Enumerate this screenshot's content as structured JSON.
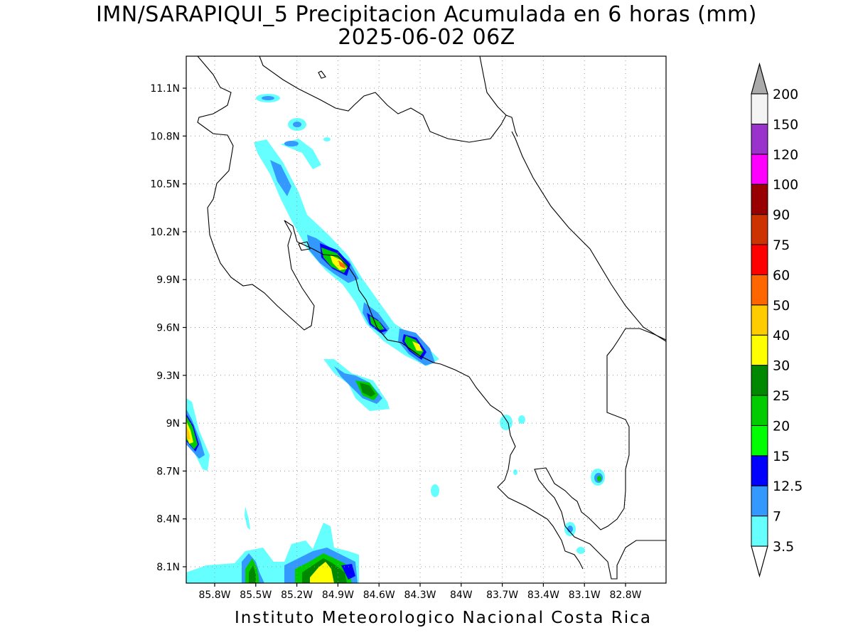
{
  "title": "IMN/SARAPIQUI_5 Precipitacion Acumulada en 6 horas (mm)",
  "subtitle": "2025-06-02 06Z",
  "credit": "Instituto Meteorologico Nacional Costa Rica",
  "map": {
    "lon_range": [
      -86.0,
      -83.0
    ],
    "lat_range": [
      8.0,
      11.2
    ],
    "lat_ticks": [
      {
        "value": 11.1,
        "label": "11.1N"
      },
      {
        "value": 10.8,
        "label": "10.8N"
      },
      {
        "value": 10.5,
        "label": "10.5N"
      },
      {
        "value": 10.2,
        "label": "10.2N"
      },
      {
        "value": 9.9,
        "label": "9.9N"
      },
      {
        "value": 9.6,
        "label": "9.6N"
      },
      {
        "value": 9.3,
        "label": "9.3N"
      },
      {
        "value": 9.0,
        "label": "9N"
      },
      {
        "value": 8.7,
        "label": "8.7N"
      },
      {
        "value": 8.4,
        "label": "8.4N"
      },
      {
        "value": 8.1,
        "label": "8.1N"
      }
    ],
    "lon_ticks": [
      {
        "value": -85.8,
        "label": "85.8W"
      },
      {
        "value": -85.5,
        "label": "85.5W"
      },
      {
        "value": -85.2,
        "label": "85.2W"
      },
      {
        "value": -84.9,
        "label": "84.9W"
      },
      {
        "value": -84.6,
        "label": "84.6W"
      },
      {
        "value": -84.3,
        "label": "84.3W"
      },
      {
        "value": -84.0,
        "label": "84W"
      },
      {
        "value": -83.7,
        "label": "83.7W"
      },
      {
        "value": -83.4,
        "label": "83.4W"
      },
      {
        "value": -83.1,
        "label": "83.1W"
      },
      {
        "value": -82.8,
        "label": "82.8W"
      }
    ],
    "gridlines": true
  },
  "colorbar": {
    "levels": [
      "3.5",
      "7",
      "12.5",
      "15",
      "20",
      "25",
      "30",
      "40",
      "50",
      "60",
      "75",
      "90",
      "100",
      "120",
      "150",
      "200"
    ],
    "colors": [
      "#66ffff",
      "#3399ff",
      "#0000ff",
      "#00ff00",
      "#00cc00",
      "#008800",
      "#ffff00",
      "#ffcc00",
      "#ff6600",
      "#ff0000",
      "#cc3300",
      "#990000",
      "#ff00ff",
      "#9933cc",
      "#f4f4f4"
    ],
    "over_color": "#aaaaaa",
    "under_color": "#ffffff"
  }
}
